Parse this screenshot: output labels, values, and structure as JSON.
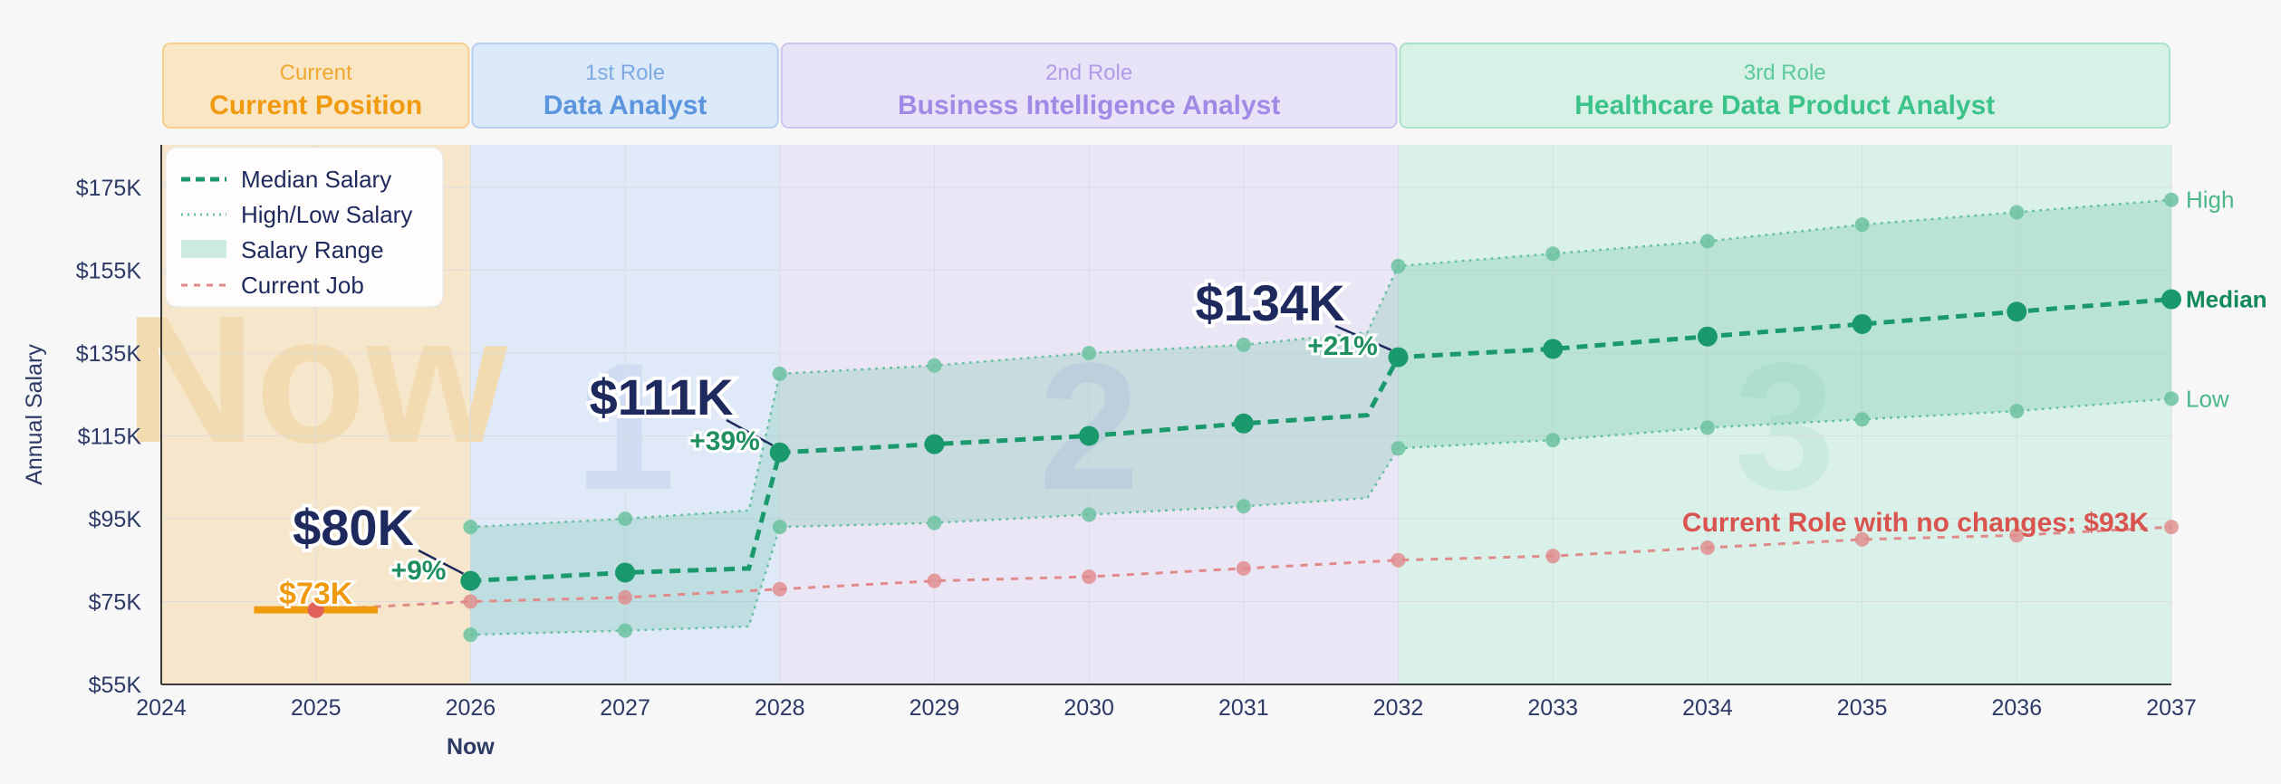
{
  "roles": [
    {
      "key": "current",
      "stage": "Current",
      "title": "Current Position",
      "start": 2024,
      "end": 2026,
      "bg": "#f6e7cc",
      "header_bg": "#f9e6c5",
      "header_border": "#f4cf8d",
      "stage_color": "#f0a830",
      "title_color": "#f09a10",
      "big_label": "Now",
      "big_color": "#f2dbb0"
    },
    {
      "key": "role1",
      "stage": "1st Role",
      "title": "Data Analyst",
      "start": 2026,
      "end": 2028,
      "bg": "#dfe9f7",
      "header_bg": "#dce9f8",
      "header_border": "#b7cff0",
      "stage_color": "#7ea9e3",
      "title_color": "#5b95de",
      "big_label": "1",
      "big_color": "#cfdcf2"
    },
    {
      "key": "role2",
      "stage": "2nd Role",
      "title": "Business Intelligence Analyst",
      "start": 2028,
      "end": 2032,
      "bg": "#ebe6f6",
      "header_bg": "#e8e3f7",
      "header_border": "#cfc4f0",
      "stage_color": "#ad9ce8",
      "title_color": "#a08ae6",
      "big_label": "2",
      "big_color": "#ddd6f2"
    },
    {
      "key": "role3",
      "stage": "3rd Role",
      "title": "Healthcare Data Product Analyst",
      "start": 2032,
      "end": 2037,
      "bg": "#d9f1e8",
      "header_bg": "#d8f1e6",
      "header_border": "#a9e1c9",
      "stage_color": "#5cc99a",
      "title_color": "#3cc389",
      "big_label": "3",
      "big_color": "#cbeadf"
    }
  ],
  "chart_data": {
    "type": "line",
    "xlabel": "",
    "ylabel": "Annual Salary",
    "xlim": [
      2024,
      2037
    ],
    "ylim": [
      55,
      185
    ],
    "x_ticks": [
      2024,
      2025,
      2026,
      2027,
      2028,
      2029,
      2030,
      2031,
      2032,
      2033,
      2034,
      2035,
      2036,
      2037
    ],
    "y_ticks": [
      {
        "value": 55,
        "label": "$55K"
      },
      {
        "value": 75,
        "label": "$75K"
      },
      {
        "value": 95,
        "label": "$95K"
      },
      {
        "value": 115,
        "label": "$115K"
      },
      {
        "value": 135,
        "label": "$135K"
      },
      {
        "value": 155,
        "label": "$155K"
      },
      {
        "value": 175,
        "label": "$175K"
      }
    ],
    "now_marker": {
      "x": 2026,
      "label": "Now"
    },
    "current_salary": {
      "x": 2025,
      "value": 73,
      "label": "$73K",
      "x_start": 2024.6,
      "x_end": 2025.4
    },
    "series": [
      {
        "name": "Median Salary",
        "style": "dashed",
        "color": "#1a9a6c",
        "points": [
          [
            2026,
            80
          ],
          [
            2027,
            82
          ],
          [
            2027.8,
            83
          ],
          [
            2028,
            111
          ],
          [
            2029,
            113
          ],
          [
            2030,
            115
          ],
          [
            2031,
            118
          ],
          [
            2031.8,
            120
          ],
          [
            2032,
            134
          ],
          [
            2033,
            136
          ],
          [
            2034,
            139
          ],
          [
            2035,
            142
          ],
          [
            2036,
            145
          ],
          [
            2037,
            148
          ]
        ],
        "markers": [
          2026,
          2027,
          2028,
          2029,
          2030,
          2031,
          2032,
          2033,
          2034,
          2035,
          2036,
          2037
        ]
      },
      {
        "name": "High",
        "style": "dotted",
        "color": "#6cc2a0",
        "points": [
          [
            2026,
            93
          ],
          [
            2027,
            95
          ],
          [
            2027.8,
            97
          ],
          [
            2028,
            130
          ],
          [
            2029,
            132
          ],
          [
            2030,
            135
          ],
          [
            2031,
            137
          ],
          [
            2031.8,
            140
          ],
          [
            2032,
            156
          ],
          [
            2033,
            159
          ],
          [
            2034,
            162
          ],
          [
            2035,
            166
          ],
          [
            2036,
            169
          ],
          [
            2037,
            172
          ]
        ],
        "markers": [
          2026,
          2027,
          2028,
          2029,
          2030,
          2031,
          2032,
          2033,
          2034,
          2035,
          2036,
          2037
        ]
      },
      {
        "name": "Low",
        "style": "dotted",
        "color": "#6cc2a0",
        "points": [
          [
            2026,
            67
          ],
          [
            2027,
            68
          ],
          [
            2027.8,
            69
          ],
          [
            2028,
            93
          ],
          [
            2029,
            94
          ],
          [
            2030,
            96
          ],
          [
            2031,
            98
          ],
          [
            2031.8,
            100
          ],
          [
            2032,
            112
          ],
          [
            2033,
            114
          ],
          [
            2034,
            117
          ],
          [
            2035,
            119
          ],
          [
            2036,
            121
          ],
          [
            2037,
            124
          ]
        ],
        "markers": [
          2026,
          2027,
          2028,
          2029,
          2030,
          2031,
          2032,
          2033,
          2034,
          2035,
          2036,
          2037
        ]
      },
      {
        "name": "Current Job",
        "style": "dashed",
        "color": "#e08a8a",
        "points": [
          [
            2025,
            73
          ],
          [
            2026,
            75
          ],
          [
            2027,
            76
          ],
          [
            2028,
            78
          ],
          [
            2029,
            80
          ],
          [
            2030,
            81
          ],
          [
            2031,
            83
          ],
          [
            2032,
            85
          ],
          [
            2033,
            86
          ],
          [
            2034,
            88
          ],
          [
            2035,
            90
          ],
          [
            2036,
            91
          ],
          [
            2037,
            93
          ]
        ],
        "markers": [
          2026,
          2027,
          2028,
          2029,
          2030,
          2031,
          2032,
          2033,
          2034,
          2035,
          2036,
          2037
        ]
      }
    ],
    "milestones": [
      {
        "x": 2026,
        "value": 80,
        "label": "$80K",
        "pct": "+9%"
      },
      {
        "x": 2028,
        "value": 111,
        "label": "$111K",
        "pct": "+39%"
      },
      {
        "x": 2032,
        "value": 134,
        "label": "$134K",
        "pct": "+21%"
      }
    ],
    "end_labels": [
      {
        "series": "High",
        "text": "High",
        "color": "#4cb789",
        "bold": false
      },
      {
        "series": "Median Salary",
        "text": "Median",
        "color": "#138a5c",
        "bold": true
      },
      {
        "series": "Low",
        "text": "Low",
        "color": "#4cb789",
        "bold": false
      }
    ],
    "current_job_annotation": "Current Role with no changes: $93K",
    "legend": {
      "position": "top-left",
      "items": [
        {
          "label": "Median Salary",
          "kind": "dashed",
          "color": "#1a9a6c"
        },
        {
          "label": "High/Low Salary",
          "kind": "dotted",
          "color": "#6cc2a0"
        },
        {
          "label": "Salary Range",
          "kind": "area",
          "color": "#cdebe0"
        },
        {
          "label": "Current Job",
          "kind": "dashed",
          "color": "#e08a8a"
        }
      ]
    },
    "colors": {
      "median": "#1a9a6c",
      "range_fill": "#3db58a",
      "current_salary": "#f09a10",
      "current_job": "#e08a8a",
      "current_job_text": "#d9534f",
      "axis_text": "#2d3a66"
    }
  }
}
